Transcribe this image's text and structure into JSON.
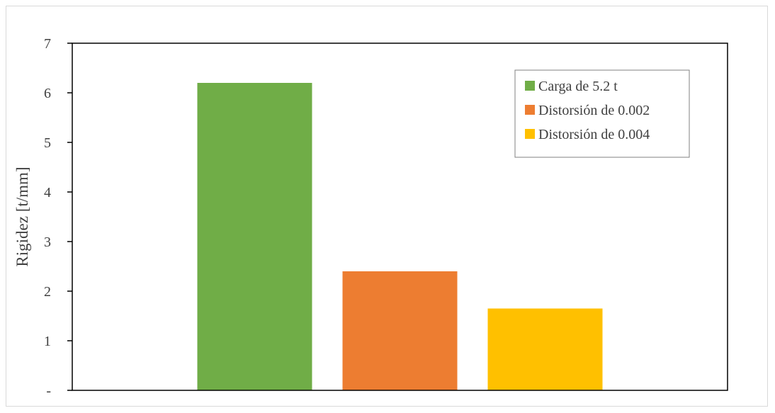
{
  "chart_data": {
    "type": "bar",
    "title": "",
    "xlabel": "",
    "ylabel": "Rigidez [t/mm]",
    "ylim": [
      0,
      7
    ],
    "y_ticks": [
      {
        "value": 0,
        "label": "-"
      },
      {
        "value": 1,
        "label": "1"
      },
      {
        "value": 2,
        "label": "2"
      },
      {
        "value": 3,
        "label": "3"
      },
      {
        "value": 4,
        "label": "4"
      },
      {
        "value": 5,
        "label": "5"
      },
      {
        "value": 6,
        "label": "6"
      },
      {
        "value": 7,
        "label": "7"
      }
    ],
    "grid": false,
    "legend_position": "top-right",
    "series": [
      {
        "name": "Carga de 5.2 t",
        "values": [
          6.2
        ],
        "color": "#70ad47"
      },
      {
        "name": "Distorsión de 0.002",
        "values": [
          2.4
        ],
        "color": "#ed7d31"
      },
      {
        "name": "Distorsión de 0.004",
        "values": [
          1.65
        ],
        "color": "#ffc000"
      }
    ]
  }
}
